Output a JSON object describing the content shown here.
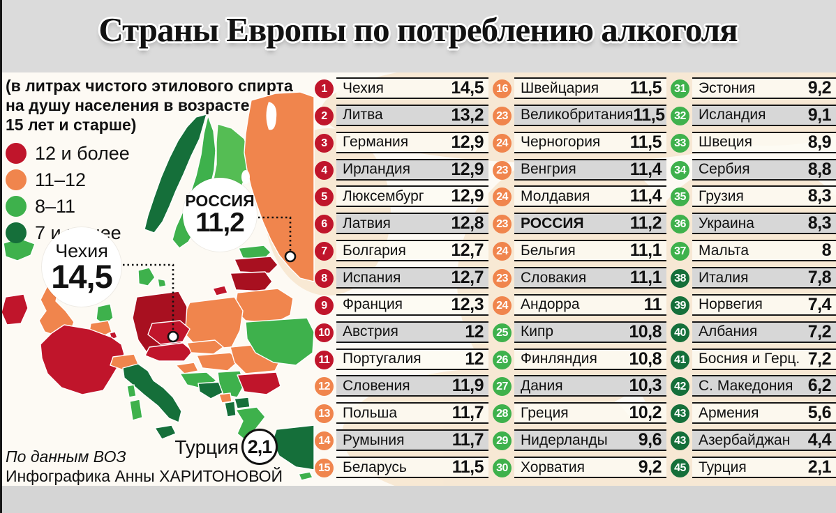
{
  "title": "Страны Европы по потреблению алкоголя",
  "legend": {
    "note_lines": [
      "(в литрах чистого этилового спирта",
      "на душу населения в возрасте",
      "15 лет и старше)"
    ],
    "items": [
      {
        "label": "12 и более",
        "tier": "red"
      },
      {
        "label": "11–12",
        "tier": "orange"
      },
      {
        "label": "8–11",
        "tier": "green"
      },
      {
        "label": "7 и менее",
        "tier": "dark"
      }
    ]
  },
  "map": {
    "callouts": [
      {
        "name": "Чехия",
        "value": "14,5"
      },
      {
        "name": "РОССИЯ",
        "value": "11,2"
      },
      {
        "name": "Турция",
        "value": "2,1"
      }
    ]
  },
  "chart_data": {
    "type": "table",
    "title": "Страны Европы по потреблению алкоголя",
    "note": "в литрах чистого этилового спирта на душу населения в возрасте 15 лет и старше",
    "legend_bins": [
      "12 и более",
      "11–12",
      "8–11",
      "7 и менее"
    ],
    "columns": [
      [
        {
          "rank": "1",
          "name": "Чехия",
          "display": "14,5",
          "value": 14.5,
          "tier": "red"
        },
        {
          "rank": "2",
          "name": "Литва",
          "display": "13,2",
          "value": 13.2,
          "tier": "red"
        },
        {
          "rank": "3",
          "name": "Германия",
          "display": "12,9",
          "value": 12.9,
          "tier": "red"
        },
        {
          "rank": "4",
          "name": "Ирландия",
          "display": "12,9",
          "value": 12.9,
          "tier": "red"
        },
        {
          "rank": "5",
          "name": "Люксембург",
          "display": "12,9",
          "value": 12.9,
          "tier": "red"
        },
        {
          "rank": "6",
          "name": "Латвия",
          "display": "12,8",
          "value": 12.8,
          "tier": "red"
        },
        {
          "rank": "7",
          "name": "Болгария",
          "display": "12,7",
          "value": 12.7,
          "tier": "red"
        },
        {
          "rank": "8",
          "name": "Испания",
          "display": "12,7",
          "value": 12.7,
          "tier": "red"
        },
        {
          "rank": "9",
          "name": "Франция",
          "display": "12,3",
          "value": 12.3,
          "tier": "red"
        },
        {
          "rank": "10",
          "name": "Австрия",
          "display": "12",
          "value": 12,
          "tier": "red"
        },
        {
          "rank": "11",
          "name": "Португалия",
          "display": "12",
          "value": 12,
          "tier": "red"
        },
        {
          "rank": "12",
          "name": "Словения",
          "display": "11,9",
          "value": 11.9,
          "tier": "orange"
        },
        {
          "rank": "13",
          "name": "Польша",
          "display": "11,7",
          "value": 11.7,
          "tier": "orange"
        },
        {
          "rank": "14",
          "name": "Румыния",
          "display": "11,7",
          "value": 11.7,
          "tier": "orange"
        },
        {
          "rank": "15",
          "name": "Беларусь",
          "display": "11,5",
          "value": 11.5,
          "tier": "orange"
        }
      ],
      [
        {
          "rank": "16",
          "name": "Швейцария",
          "display": "11,5",
          "value": 11.5,
          "tier": "orange"
        },
        {
          "rank": "23",
          "name": "Великобритания",
          "display": "11,5",
          "value": 11.5,
          "tier": "orange"
        },
        {
          "rank": "24",
          "name": "Черногория",
          "display": "11,5",
          "value": 11.5,
          "tier": "orange"
        },
        {
          "rank": "23",
          "name": "Венгрия",
          "display": "11,4",
          "value": 11.4,
          "tier": "orange"
        },
        {
          "rank": "24",
          "name": "Молдавия",
          "display": "11,4",
          "value": 11.4,
          "tier": "orange"
        },
        {
          "rank": "23",
          "name": "РОССИЯ",
          "display": "11,2",
          "value": 11.2,
          "tier": "orange",
          "bold": true
        },
        {
          "rank": "24",
          "name": "Бельгия",
          "display": "11,1",
          "value": 11.1,
          "tier": "orange"
        },
        {
          "rank": "23",
          "name": "Словакия",
          "display": "11,1",
          "value": 11.1,
          "tier": "orange"
        },
        {
          "rank": "24",
          "name": "Андорра",
          "display": "11",
          "value": 11,
          "tier": "orange"
        },
        {
          "rank": "25",
          "name": "Кипр",
          "display": "10,8",
          "value": 10.8,
          "tier": "green"
        },
        {
          "rank": "26",
          "name": "Финляндия",
          "display": "10,8",
          "value": 10.8,
          "tier": "green"
        },
        {
          "rank": "27",
          "name": "Дания",
          "display": "10,3",
          "value": 10.3,
          "tier": "green"
        },
        {
          "rank": "28",
          "name": "Греция",
          "display": "10,2",
          "value": 10.2,
          "tier": "green"
        },
        {
          "rank": "29",
          "name": "Нидерланды",
          "display": "9,6",
          "value": 9.6,
          "tier": "green"
        },
        {
          "rank": "30",
          "name": "Хорватия",
          "display": "9,2",
          "value": 9.2,
          "tier": "green"
        }
      ],
      [
        {
          "rank": "31",
          "name": "Эстония",
          "display": "9,2",
          "value": 9.2,
          "tier": "green"
        },
        {
          "rank": "32",
          "name": "Исландия",
          "display": "9,1",
          "value": 9.1,
          "tier": "green"
        },
        {
          "rank": "33",
          "name": "Швеция",
          "display": "8,9",
          "value": 8.9,
          "tier": "green"
        },
        {
          "rank": "34",
          "name": "Сербия",
          "display": "8,8",
          "value": 8.8,
          "tier": "green"
        },
        {
          "rank": "35",
          "name": "Грузия",
          "display": "8,3",
          "value": 8.3,
          "tier": "green"
        },
        {
          "rank": "36",
          "name": "Украина",
          "display": "8,3",
          "value": 8.3,
          "tier": "green"
        },
        {
          "rank": "37",
          "name": "Мальта",
          "display": "8",
          "value": 8,
          "tier": "green"
        },
        {
          "rank": "38",
          "name": "Италия",
          "display": "7,8",
          "value": 7.8,
          "tier": "dark"
        },
        {
          "rank": "39",
          "name": "Норвегия",
          "display": "7,4",
          "value": 7.4,
          "tier": "dark"
        },
        {
          "rank": "40",
          "name": "Албания",
          "display": "7,2",
          "value": 7.2,
          "tier": "dark"
        },
        {
          "rank": "41",
          "name": "Босния и Герц.",
          "display": "7,2",
          "value": 7.2,
          "tier": "dark"
        },
        {
          "rank": "42",
          "name": "С. Македония",
          "display": "6,2",
          "value": 6.2,
          "tier": "dark"
        },
        {
          "rank": "43",
          "name": "Армения",
          "display": "5,6",
          "value": 5.6,
          "tier": "dark"
        },
        {
          "rank": "43",
          "name": "Азербайджан",
          "display": "4,4",
          "value": 4.4,
          "tier": "dark"
        },
        {
          "rank": "45",
          "name": "Турция",
          "display": "2,1",
          "value": 2.1,
          "tier": "dark"
        }
      ]
    ]
  },
  "footer": {
    "source": "По данным ВОЗ",
    "credit": "Инфографика Анны ХАРИТОНОВОЙ"
  },
  "colors": {
    "red": "#c0152b",
    "dark_red": "#a81020",
    "orange": "#f0854d",
    "green": "#3eb14c",
    "light_green": "#55bd54",
    "dark_green": "#156f3a",
    "peach": "#f6e3ca"
  }
}
